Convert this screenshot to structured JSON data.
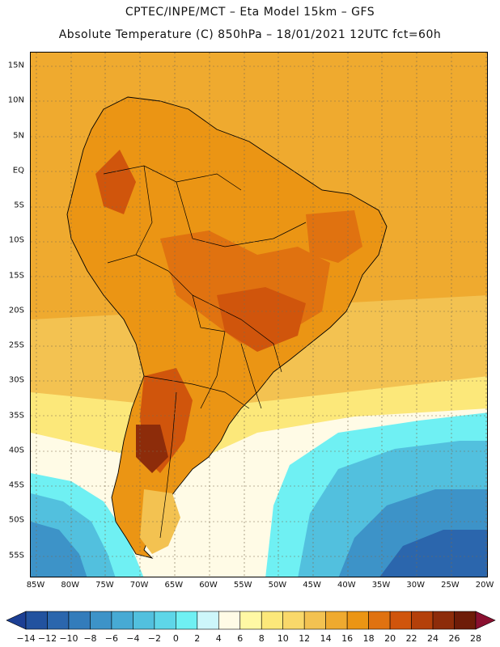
{
  "title_line1": "CPTEC/INPE/MCT –  Eta Model 15km – GFS",
  "title_line2": "Absolute Temperature (C) 850hPa – 18/01/2021 12UTC fct=60h",
  "lat_labels": [
    "15N",
    "10N",
    "5N",
    "EQ",
    "5S",
    "10S",
    "15S",
    "20S",
    "25S",
    "30S",
    "35S",
    "40S",
    "45S",
    "50S",
    "55S"
  ],
  "lon_labels": [
    "85W",
    "80W",
    "75W",
    "70W",
    "65W",
    "60W",
    "55W",
    "50W",
    "45W",
    "40W",
    "35W",
    "30W",
    "25W",
    "20W"
  ],
  "legend": {
    "labels": [
      "-14",
      "-12",
      "-10",
      "-8",
      "-6",
      "-4",
      "-2",
      "0",
      "2",
      "4",
      "6",
      "8",
      "10",
      "12",
      "14",
      "16",
      "18",
      "20",
      "22",
      "24",
      "26",
      "28"
    ],
    "colors": [
      "#1c3f94",
      "#22529f",
      "#2b66ad",
      "#337cbb",
      "#3d93c8",
      "#47aad4",
      "#52c0de",
      "#5ed6e8",
      "#6ff0f3",
      "#cdf6fa",
      "#fffbe6",
      "#fff8a4",
      "#fce87a",
      "#f9d86a",
      "#f3c251",
      "#efaa2f",
      "#eb9514",
      "#e07210",
      "#d0550c",
      "#b4400a",
      "#8d2c0a",
      "#6e1c08",
      "#8a1030"
    ]
  },
  "colors": {
    "ocean_warm": "#efaa2f",
    "ocean_mid": "#f3c251",
    "ocean_cool": "#fce87a",
    "land_hot": "#d0550c",
    "land_warm": "#e07210",
    "land_base": "#eb9514",
    "cold_1": "#6ff0f3",
    "cold_2": "#52c0de",
    "cold_3": "#3d93c8",
    "cold_4": "#2b66ad",
    "pale": "#fffbe6",
    "border": "#000000"
  }
}
